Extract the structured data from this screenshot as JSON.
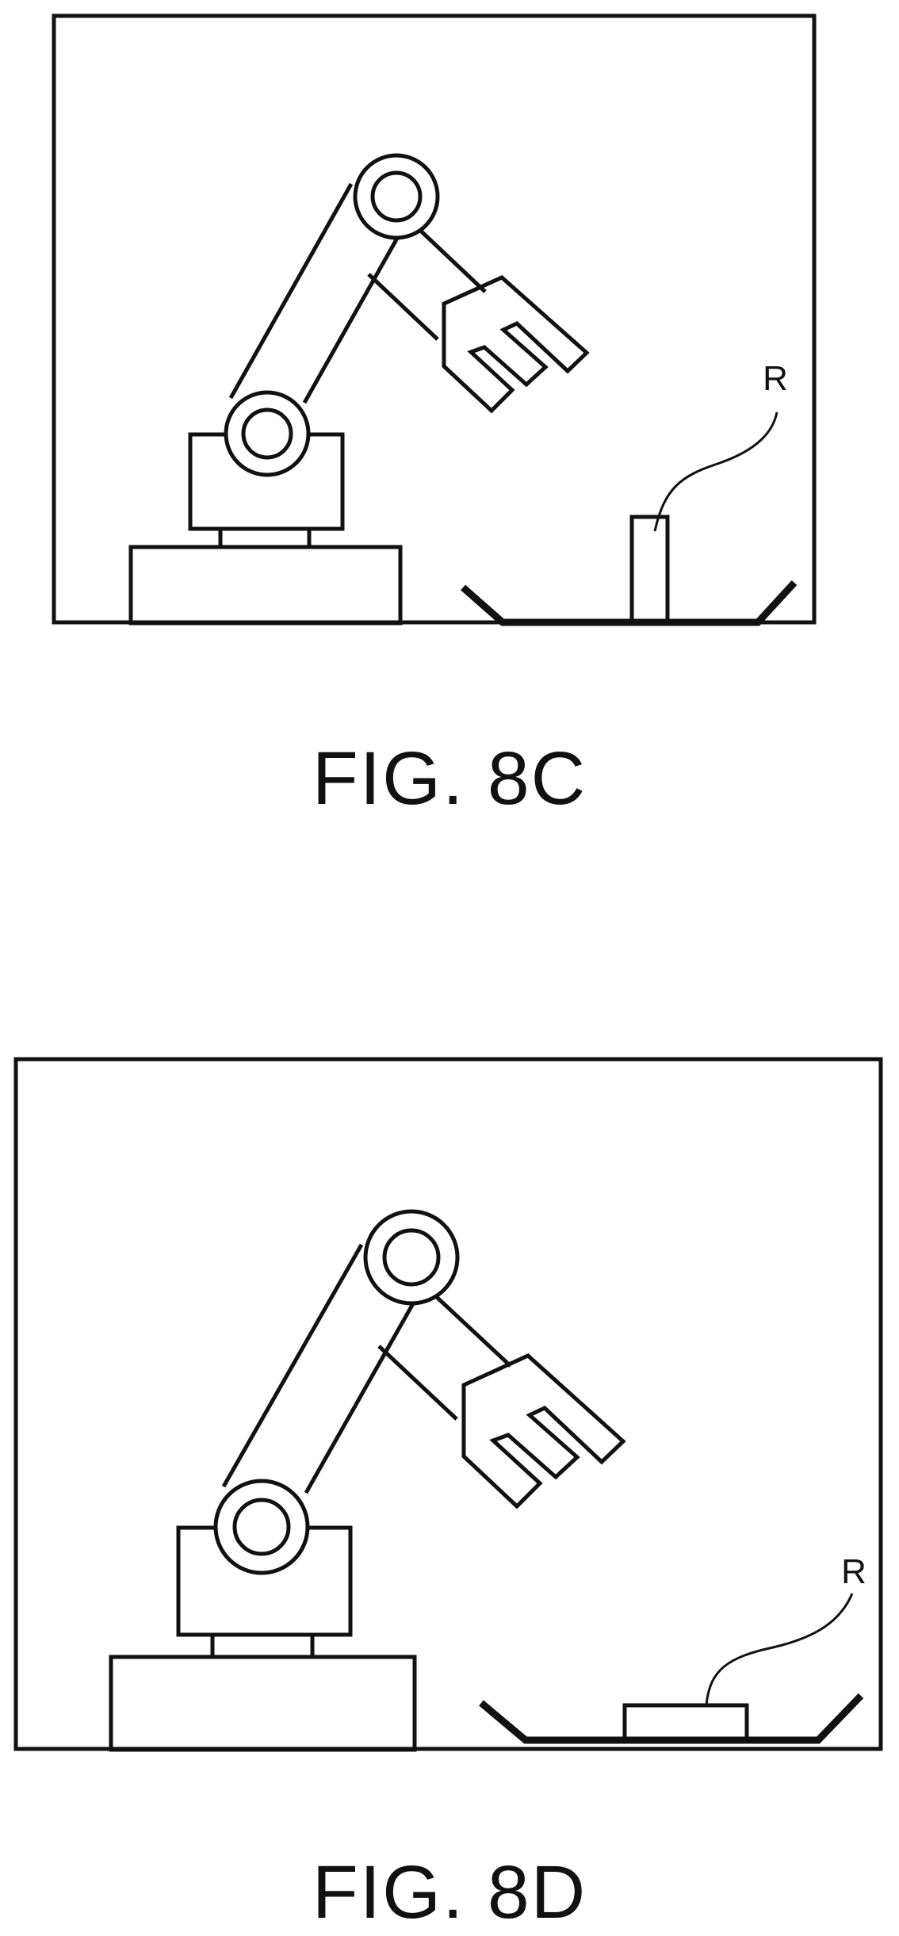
{
  "figures": [
    {
      "caption": "FIG. 8C",
      "reference_label": "R",
      "colors": {
        "line": "#111111",
        "background": "#ffffff"
      }
    },
    {
      "caption": "FIG. 8D",
      "reference_label": "R",
      "colors": {
        "line": "#111111",
        "background": "#ffffff"
      }
    }
  ]
}
